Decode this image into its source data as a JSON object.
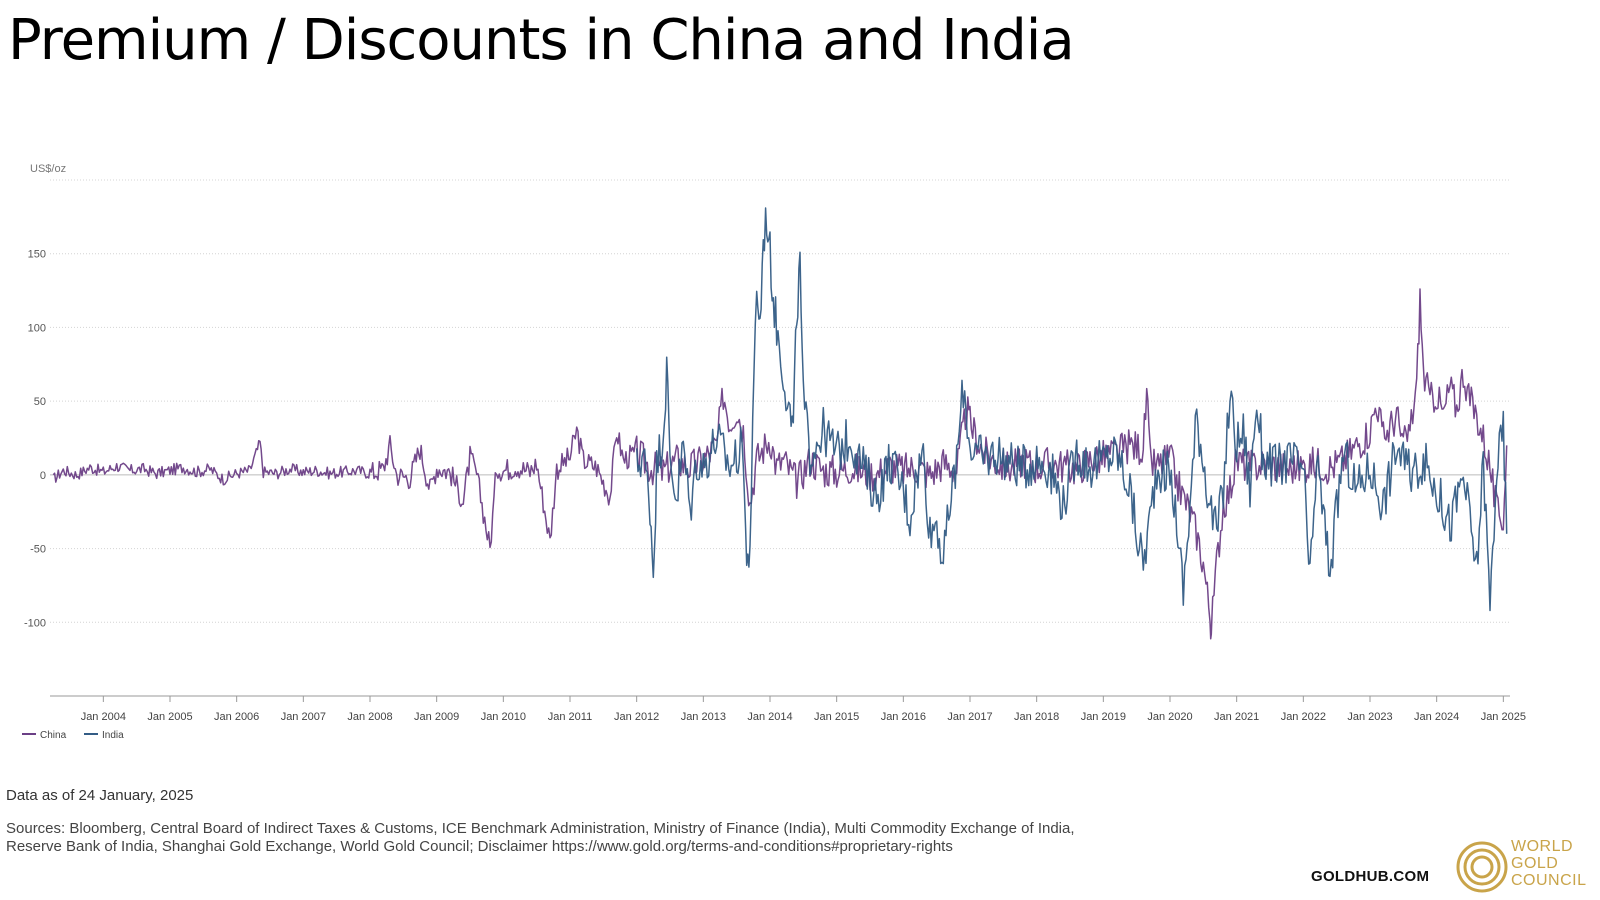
{
  "title": "Premium / Discounts in China and India",
  "footer": {
    "as_of": "Data as of 24 January, 2025",
    "sources_line1": "Sources: Bloomberg, Central Board of Indirect Taxes & Customs, ICE Benchmark Administration, Ministry of Finance (India), Multi Commodity Exchange of India,",
    "sources_line2": "Reserve Bank of India, Shanghai Gold Exchange, World Gold Council; Disclaimer https://www.gold.org/terms-and-conditions#proprietary-rights",
    "site": "GOLDHUB.COM",
    "logo_lines": [
      "WORLD",
      "GOLD",
      "COUNCIL"
    ]
  },
  "colors": {
    "china": "#6b3f86",
    "india": "#335c85",
    "gold": "#c9a44a"
  },
  "chart_data": {
    "type": "line",
    "ylabel": "US$/oz",
    "ylim": [
      -150,
      200
    ],
    "yticks": [
      -100,
      -50,
      0,
      50,
      100,
      150
    ],
    "xlim": [
      2003.2,
      2025.1
    ],
    "xticks": [
      {
        "label": "Jan 2004",
        "x": 2004
      },
      {
        "label": "Jan 2005",
        "x": 2005
      },
      {
        "label": "Jan 2006",
        "x": 2006
      },
      {
        "label": "Jan 2007",
        "x": 2007
      },
      {
        "label": "Jan 2008",
        "x": 2008
      },
      {
        "label": "Jan 2009",
        "x": 2009
      },
      {
        "label": "Jan 2010",
        "x": 2010
      },
      {
        "label": "Jan 2011",
        "x": 2011
      },
      {
        "label": "Jan 2012",
        "x": 2012
      },
      {
        "label": "Jan 2013",
        "x": 2013
      },
      {
        "label": "Jan 2014",
        "x": 2014
      },
      {
        "label": "Jan 2015",
        "x": 2015
      },
      {
        "label": "Jan 2016",
        "x": 2016
      },
      {
        "label": "Jan 2017",
        "x": 2017
      },
      {
        "label": "Jan 2018",
        "x": 2018
      },
      {
        "label": "Jan 2019",
        "x": 2019
      },
      {
        "label": "Jan 2020",
        "x": 2020
      },
      {
        "label": "Jan 2021",
        "x": 2021
      },
      {
        "label": "Jan 2022",
        "x": 2022
      },
      {
        "label": "Jan 2023",
        "x": 2023
      },
      {
        "label": "Jan 2024",
        "x": 2024
      },
      {
        "label": "Jan 2025",
        "x": 2025
      }
    ],
    "grid": true,
    "legend_position": "bottom-left",
    "series": [
      {
        "name": "China",
        "color": "#6b3f86",
        "points": [
          [
            2003.25,
            -3
          ],
          [
            2003.4,
            3
          ],
          [
            2003.6,
            0
          ],
          [
            2003.8,
            5
          ],
          [
            2004.0,
            2
          ],
          [
            2004.2,
            6
          ],
          [
            2004.4,
            3
          ],
          [
            2004.6,
            4
          ],
          [
            2004.8,
            1
          ],
          [
            2005.0,
            3
          ],
          [
            2005.2,
            5
          ],
          [
            2005.4,
            2
          ],
          [
            2005.6,
            4
          ],
          [
            2005.8,
            -3
          ],
          [
            2006.0,
            1
          ],
          [
            2006.2,
            3
          ],
          [
            2006.35,
            22
          ],
          [
            2006.4,
            2
          ],
          [
            2006.6,
            1
          ],
          [
            2006.8,
            4
          ],
          [
            2007.0,
            2
          ],
          [
            2007.2,
            3
          ],
          [
            2007.4,
            1
          ],
          [
            2007.6,
            2
          ],
          [
            2007.8,
            3
          ],
          [
            2008.0,
            1
          ],
          [
            2008.2,
            4
          ],
          [
            2008.3,
            20
          ],
          [
            2008.4,
            0
          ],
          [
            2008.6,
            -2
          ],
          [
            2008.75,
            18
          ],
          [
            2008.9,
            -10
          ],
          [
            2009.0,
            5
          ],
          [
            2009.2,
            2
          ],
          [
            2009.4,
            -18
          ],
          [
            2009.5,
            12
          ],
          [
            2009.6,
            0
          ],
          [
            2009.8,
            -50
          ],
          [
            2009.9,
            5
          ],
          [
            2010.0,
            3
          ],
          [
            2010.2,
            6
          ],
          [
            2010.4,
            2
          ],
          [
            2010.5,
            8
          ],
          [
            2010.7,
            -45
          ],
          [
            2010.8,
            4
          ],
          [
            2011.0,
            12
          ],
          [
            2011.1,
            30
          ],
          [
            2011.2,
            10
          ],
          [
            2011.4,
            5
          ],
          [
            2011.6,
            -15
          ],
          [
            2011.7,
            30
          ],
          [
            2011.8,
            10
          ],
          [
            2012.0,
            15
          ],
          [
            2012.2,
            5
          ],
          [
            2012.4,
            2
          ],
          [
            2012.6,
            10
          ],
          [
            2012.8,
            5
          ],
          [
            2013.0,
            10
          ],
          [
            2013.2,
            20
          ],
          [
            2013.3,
            55
          ],
          [
            2013.4,
            35
          ],
          [
            2013.5,
            45
          ],
          [
            2013.6,
            30
          ],
          [
            2013.7,
            -20
          ],
          [
            2013.8,
            10
          ],
          [
            2014.0,
            25
          ],
          [
            2014.1,
            5
          ],
          [
            2014.2,
            10
          ],
          [
            2014.4,
            -5
          ],
          [
            2014.6,
            10
          ],
          [
            2014.8,
            3
          ],
          [
            2015.0,
            2
          ],
          [
            2015.2,
            5
          ],
          [
            2015.4,
            2
          ],
          [
            2015.6,
            0
          ],
          [
            2015.8,
            6
          ],
          [
            2016.0,
            3
          ],
          [
            2016.2,
            5
          ],
          [
            2016.4,
            0
          ],
          [
            2016.6,
            8
          ],
          [
            2016.8,
            3
          ],
          [
            2016.95,
            45
          ],
          [
            2017.0,
            35
          ],
          [
            2017.2,
            15
          ],
          [
            2017.4,
            8
          ],
          [
            2017.6,
            5
          ],
          [
            2017.8,
            10
          ],
          [
            2018.0,
            5
          ],
          [
            2018.2,
            8
          ],
          [
            2018.4,
            6
          ],
          [
            2018.6,
            4
          ],
          [
            2018.8,
            10
          ],
          [
            2019.0,
            12
          ],
          [
            2019.2,
            15
          ],
          [
            2019.4,
            20
          ],
          [
            2019.6,
            18
          ],
          [
            2019.65,
            55
          ],
          [
            2019.7,
            10
          ],
          [
            2019.8,
            5
          ],
          [
            2020.0,
            12
          ],
          [
            2020.1,
            -5
          ],
          [
            2020.3,
            -25
          ],
          [
            2020.4,
            -40
          ],
          [
            2020.5,
            -60
          ],
          [
            2020.6,
            -95
          ],
          [
            2020.62,
            -105
          ],
          [
            2020.7,
            -60
          ],
          [
            2020.8,
            -20
          ],
          [
            2020.9,
            -10
          ],
          [
            2021.0,
            10
          ],
          [
            2021.2,
            5
          ],
          [
            2021.4,
            8
          ],
          [
            2021.6,
            6
          ],
          [
            2021.8,
            4
          ],
          [
            2022.0,
            6
          ],
          [
            2022.2,
            8
          ],
          [
            2022.4,
            5
          ],
          [
            2022.6,
            10
          ],
          [
            2022.8,
            20
          ],
          [
            2023.0,
            30
          ],
          [
            2023.1,
            50
          ],
          [
            2023.2,
            25
          ],
          [
            2023.4,
            40
          ],
          [
            2023.5,
            20
          ],
          [
            2023.6,
            30
          ],
          [
            2023.7,
            60
          ],
          [
            2023.75,
            120
          ],
          [
            2023.8,
            70
          ],
          [
            2023.9,
            50
          ],
          [
            2024.0,
            55
          ],
          [
            2024.1,
            40
          ],
          [
            2024.2,
            60
          ],
          [
            2024.3,
            45
          ],
          [
            2024.4,
            70
          ],
          [
            2024.5,
            50
          ],
          [
            2024.6,
            40
          ],
          [
            2024.7,
            25
          ],
          [
            2024.8,
            5
          ],
          [
            2024.9,
            -25
          ],
          [
            2025.0,
            -30
          ],
          [
            2025.05,
            20
          ]
        ]
      },
      {
        "name": "India",
        "color": "#335c85",
        "points": [
          [
            2012.0,
            5
          ],
          [
            2012.1,
            15
          ],
          [
            2012.2,
            -20
          ],
          [
            2012.25,
            -65
          ],
          [
            2012.3,
            5
          ],
          [
            2012.4,
            30
          ],
          [
            2012.45,
            72
          ],
          [
            2012.5,
            10
          ],
          [
            2012.6,
            -15
          ],
          [
            2012.7,
            20
          ],
          [
            2012.8,
            -25
          ],
          [
            2012.9,
            10
          ],
          [
            2013.0,
            5
          ],
          [
            2013.2,
            25
          ],
          [
            2013.4,
            5
          ],
          [
            2013.6,
            20
          ],
          [
            2013.65,
            -65
          ],
          [
            2013.7,
            -45
          ],
          [
            2013.8,
            130
          ],
          [
            2013.85,
            100
          ],
          [
            2013.9,
            160
          ],
          [
            2013.95,
            175
          ],
          [
            2014.0,
            150
          ],
          [
            2014.05,
            120
          ],
          [
            2014.1,
            100
          ],
          [
            2014.2,
            70
          ],
          [
            2014.3,
            40
          ],
          [
            2014.35,
            30
          ],
          [
            2014.4,
            110
          ],
          [
            2014.45,
            140
          ],
          [
            2014.5,
            50
          ],
          [
            2014.6,
            15
          ],
          [
            2014.8,
            30
          ],
          [
            2015.0,
            15
          ],
          [
            2015.2,
            25
          ],
          [
            2015.4,
            5
          ],
          [
            2015.6,
            -15
          ],
          [
            2015.8,
            10
          ],
          [
            2016.0,
            -10
          ],
          [
            2016.1,
            -30
          ],
          [
            2016.2,
            0
          ],
          [
            2016.3,
            15
          ],
          [
            2016.4,
            -40
          ],
          [
            2016.5,
            -30
          ],
          [
            2016.6,
            -60
          ],
          [
            2016.7,
            -20
          ],
          [
            2016.8,
            10
          ],
          [
            2016.9,
            60
          ],
          [
            2017.0,
            20
          ],
          [
            2017.2,
            10
          ],
          [
            2017.4,
            15
          ],
          [
            2017.6,
            8
          ],
          [
            2017.8,
            5
          ],
          [
            2018.0,
            10
          ],
          [
            2018.2,
            5
          ],
          [
            2018.4,
            -20
          ],
          [
            2018.6,
            15
          ],
          [
            2018.8,
            5
          ],
          [
            2019.0,
            10
          ],
          [
            2019.2,
            15
          ],
          [
            2019.4,
            -10
          ],
          [
            2019.5,
            -40
          ],
          [
            2019.6,
            -60
          ],
          [
            2019.7,
            -30
          ],
          [
            2019.8,
            5
          ],
          [
            2020.0,
            0
          ],
          [
            2020.1,
            -30
          ],
          [
            2020.2,
            -80
          ],
          [
            2020.3,
            -20
          ],
          [
            2020.4,
            40
          ],
          [
            2020.5,
            10
          ],
          [
            2020.6,
            -20
          ],
          [
            2020.7,
            -40
          ],
          [
            2020.8,
            -10
          ],
          [
            2020.9,
            55
          ],
          [
            2021.0,
            20
          ],
          [
            2021.1,
            30
          ],
          [
            2021.2,
            -10
          ],
          [
            2021.3,
            50
          ],
          [
            2021.4,
            10
          ],
          [
            2021.6,
            5
          ],
          [
            2021.8,
            10
          ],
          [
            2022.0,
            5
          ],
          [
            2022.1,
            -75
          ],
          [
            2022.2,
            10
          ],
          [
            2022.4,
            -65
          ],
          [
            2022.6,
            15
          ],
          [
            2022.8,
            -10
          ],
          [
            2023.0,
            5
          ],
          [
            2023.2,
            -20
          ],
          [
            2023.4,
            20
          ],
          [
            2023.6,
            0
          ],
          [
            2023.8,
            10
          ],
          [
            2024.0,
            -10
          ],
          [
            2024.2,
            -35
          ],
          [
            2024.4,
            0
          ],
          [
            2024.6,
            -65
          ],
          [
            2024.7,
            10
          ],
          [
            2024.8,
            -90
          ],
          [
            2024.9,
            5
          ],
          [
            2025.0,
            30
          ],
          [
            2025.05,
            -40
          ]
        ]
      }
    ]
  }
}
